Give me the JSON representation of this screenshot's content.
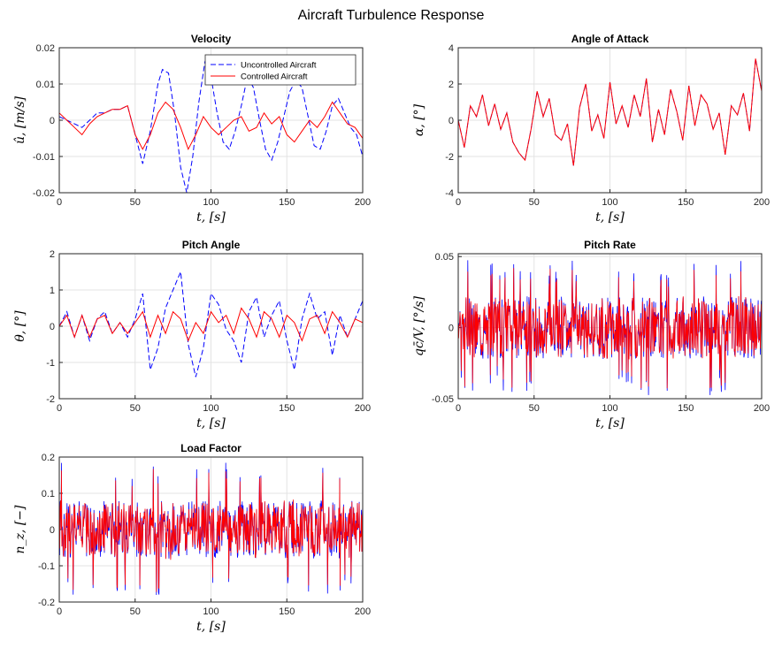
{
  "figure": {
    "title": "Aircraft Turbulence Response"
  },
  "colors": {
    "uncontrolled": "#0000ff",
    "controlled": "#ff0000",
    "grid": "#e3e3e3",
    "axis": "#262626"
  },
  "chart_data": [
    {
      "type": "line",
      "title": "Velocity",
      "xlabel": "t, [s]",
      "ylabel": "û, [m/s]",
      "xlim": [
        0,
        200
      ],
      "ylim": [
        -0.02,
        0.02
      ],
      "xticks": [
        "0",
        "50",
        "100",
        "150",
        "200"
      ],
      "yticks": [
        "-0.02",
        "-0.01",
        "0",
        "0.01",
        "0.02"
      ],
      "grid": true,
      "legend": {
        "position": "top-right",
        "entries": [
          "Uncontrolled Aircraft",
          "Controlled Aircraft"
        ]
      },
      "series": [
        {
          "name": "Uncontrolled Aircraft",
          "style": "dashed",
          "x": [
            0,
            5,
            10,
            15,
            20,
            25,
            30,
            35,
            40,
            45,
            50,
            55,
            60,
            65,
            68,
            72,
            76,
            80,
            84,
            88,
            92,
            96,
            100,
            104,
            108,
            112,
            116,
            120,
            124,
            128,
            132,
            136,
            140,
            144,
            148,
            152,
            156,
            160,
            164,
            168,
            172,
            176,
            180,
            184,
            188,
            192,
            196,
            200
          ],
          "y": [
            0.001,
            0,
            -0.001,
            -0.002,
            0,
            0.002,
            0.002,
            0.003,
            0.003,
            0.004,
            -0.004,
            -0.012,
            -0.003,
            0.01,
            0.014,
            0.013,
            0.002,
            -0.013,
            -0.02,
            -0.01,
            0.005,
            0.016,
            0.012,
            0.002,
            -0.006,
            -0.008,
            -0.003,
            0.004,
            0.012,
            0.009,
            0,
            -0.008,
            -0.011,
            -0.006,
            0.001,
            0.008,
            0.011,
            0.009,
            0.001,
            -0.007,
            -0.008,
            -0.003,
            0.004,
            0.006,
            0.002,
            -0.002,
            -0.004,
            -0.01
          ]
        },
        {
          "name": "Controlled Aircraft",
          "style": "solid",
          "x": [
            0,
            5,
            10,
            15,
            20,
            25,
            30,
            35,
            40,
            45,
            50,
            55,
            60,
            65,
            70,
            75,
            80,
            85,
            90,
            95,
            100,
            105,
            110,
            115,
            120,
            125,
            130,
            135,
            140,
            145,
            150,
            155,
            160,
            165,
            170,
            175,
            180,
            185,
            190,
            195,
            200
          ],
          "y": [
            0.002,
            0,
            -0.002,
            -0.004,
            -0.001,
            0.001,
            0.002,
            0.003,
            0.003,
            0.004,
            -0.004,
            -0.008,
            -0.004,
            0.002,
            0.005,
            0.003,
            -0.002,
            -0.008,
            -0.004,
            0.001,
            -0.002,
            -0.004,
            -0.002,
            0,
            0.001,
            -0.003,
            -0.002,
            0.002,
            -0.001,
            0.001,
            -0.004,
            -0.006,
            -0.003,
            0,
            -0.002,
            0.001,
            0.005,
            0.002,
            -0.001,
            -0.002,
            -0.005
          ]
        }
      ]
    },
    {
      "type": "line",
      "title": "Angle of Attack",
      "xlabel": "t, [s]",
      "ylabel": "α, [°]",
      "xlim": [
        0,
        200
      ],
      "ylim": [
        -4,
        4
      ],
      "xticks": [
        "0",
        "50",
        "100",
        "150",
        "200"
      ],
      "yticks": [
        "-4",
        "-2",
        "0",
        "2",
        "4"
      ],
      "grid": true,
      "series": [
        {
          "name": "",
          "style": "dashed",
          "x": [
            0,
            4,
            8,
            12,
            16,
            20,
            24,
            28,
            32,
            36,
            40,
            44,
            48,
            52,
            56,
            60,
            64,
            68,
            72,
            76,
            80,
            84,
            88,
            92,
            96,
            100,
            104,
            108,
            112,
            116,
            120,
            124,
            128,
            132,
            136,
            140,
            144,
            148,
            152,
            156,
            160,
            164,
            168,
            172,
            176,
            180,
            184,
            188,
            192,
            196,
            200
          ],
          "y": [
            0,
            -1.5,
            0.8,
            0.2,
            1.4,
            -0.3,
            0.9,
            -0.5,
            0.4,
            -1.2,
            -1.8,
            -2.2,
            -0.5,
            1.6,
            0.2,
            1.2,
            -0.8,
            -1.1,
            -0.2,
            -2.5,
            0.7,
            2.0,
            -0.6,
            0.3,
            -1.0,
            2.1,
            -0.2,
            0.8,
            -0.4,
            1.4,
            0.2,
            2.3,
            -1.2,
            0.6,
            -0.8,
            1.7,
            0.5,
            -1.1,
            1.9,
            -0.3,
            1.4,
            0.9,
            -0.5,
            0.4,
            -1.9,
            0.8,
            0.3,
            1.5,
            -0.6,
            3.4,
            1.6
          ]
        },
        {
          "name": "",
          "style": "solid",
          "x": [
            0,
            4,
            8,
            12,
            16,
            20,
            24,
            28,
            32,
            36,
            40,
            44,
            48,
            52,
            56,
            60,
            64,
            68,
            72,
            76,
            80,
            84,
            88,
            92,
            96,
            100,
            104,
            108,
            112,
            116,
            120,
            124,
            128,
            132,
            136,
            140,
            144,
            148,
            152,
            156,
            160,
            164,
            168,
            172,
            176,
            180,
            184,
            188,
            192,
            196,
            200
          ],
          "y": [
            0,
            -1.5,
            0.8,
            0.2,
            1.4,
            -0.3,
            0.9,
            -0.5,
            0.4,
            -1.2,
            -1.8,
            -2.2,
            -0.5,
            1.6,
            0.2,
            1.2,
            -0.8,
            -1.1,
            -0.2,
            -2.5,
            0.7,
            2.0,
            -0.6,
            0.3,
            -1.0,
            2.1,
            -0.2,
            0.8,
            -0.4,
            1.4,
            0.2,
            2.3,
            -1.2,
            0.6,
            -0.8,
            1.7,
            0.5,
            -1.1,
            1.9,
            -0.3,
            1.4,
            0.9,
            -0.5,
            0.4,
            -1.9,
            0.8,
            0.3,
            1.5,
            -0.6,
            3.4,
            1.6
          ]
        }
      ]
    },
    {
      "type": "line",
      "title": "Pitch Angle",
      "xlabel": "t, [s]",
      "ylabel": "θ, [°]",
      "xlim": [
        0,
        200
      ],
      "ylim": [
        -2,
        2
      ],
      "xticks": [
        "0",
        "50",
        "100",
        "150",
        "200"
      ],
      "yticks": [
        "-2",
        "-1",
        "0",
        "1",
        "2"
      ],
      "grid": true,
      "series": [
        {
          "name": "",
          "style": "dashed",
          "x": [
            0,
            5,
            10,
            15,
            20,
            25,
            30,
            35,
            40,
            45,
            50,
            55,
            60,
            65,
            70,
            75,
            80,
            85,
            90,
            95,
            100,
            105,
            110,
            115,
            120,
            125,
            130,
            135,
            140,
            145,
            150,
            155,
            160,
            165,
            170,
            175,
            180,
            185,
            190,
            195,
            200
          ],
          "y": [
            0,
            0.4,
            -0.3,
            0.3,
            -0.4,
            0.2,
            0.4,
            -0.2,
            0.1,
            -0.3,
            0.2,
            0.9,
            -1.2,
            -0.6,
            0.5,
            1.0,
            1.5,
            -0.5,
            -1.4,
            -0.6,
            0.9,
            0.6,
            -0.1,
            -0.4,
            -1.0,
            0.4,
            0.8,
            -0.3,
            0.3,
            0.7,
            -0.4,
            -1.2,
            0.2,
            0.9,
            0.2,
            0.4,
            -0.8,
            0.3,
            -0.3,
            0.2,
            0.7
          ]
        },
        {
          "name": "",
          "style": "solid",
          "x": [
            0,
            5,
            10,
            15,
            20,
            25,
            30,
            35,
            40,
            45,
            50,
            55,
            60,
            65,
            70,
            75,
            80,
            85,
            90,
            95,
            100,
            105,
            110,
            115,
            120,
            125,
            130,
            135,
            140,
            145,
            150,
            155,
            160,
            165,
            170,
            175,
            180,
            185,
            190,
            195,
            200
          ],
          "y": [
            0,
            0.3,
            -0.3,
            0.3,
            -0.3,
            0.2,
            0.3,
            -0.2,
            0.1,
            -0.2,
            0.1,
            0.4,
            -0.3,
            0.3,
            -0.2,
            0.4,
            0.2,
            -0.4,
            0.1,
            -0.2,
            0.4,
            0.1,
            0.3,
            -0.2,
            0.5,
            0.2,
            -0.3,
            0.4,
            0.2,
            -0.3,
            0.3,
            0.1,
            -0.4,
            0.2,
            0.3,
            -0.2,
            0.4,
            0.1,
            -0.3,
            0.2,
            0.1
          ]
        }
      ]
    },
    {
      "type": "line",
      "title": "Pitch Rate",
      "xlabel": "t, [s]",
      "ylabel": "qc̄/V, [°/s]",
      "xlim": [
        0,
        200
      ],
      "ylim": [
        -0.05,
        0.052
      ],
      "xticks": [
        "0",
        "50",
        "100",
        "150",
        "200"
      ],
      "yticks": [
        "-0.05",
        "0",
        "0.05"
      ],
      "grid": true,
      "noise": {
        "amplitude": 0.022,
        "peaks": 0.048
      }
    },
    {
      "type": "line",
      "title": "Load Factor",
      "xlabel": "t, [s]",
      "ylabel": "n_z, [−]",
      "xlim": [
        0,
        200
      ],
      "ylim": [
        -0.2,
        0.2
      ],
      "xticks": [
        "0",
        "50",
        "100",
        "150",
        "200"
      ],
      "yticks": [
        "-0.2",
        "-0.1",
        "0",
        "0.1",
        "0.2"
      ],
      "grid": true,
      "noise": {
        "amplitude": 0.08,
        "peaks": 0.19
      }
    }
  ]
}
